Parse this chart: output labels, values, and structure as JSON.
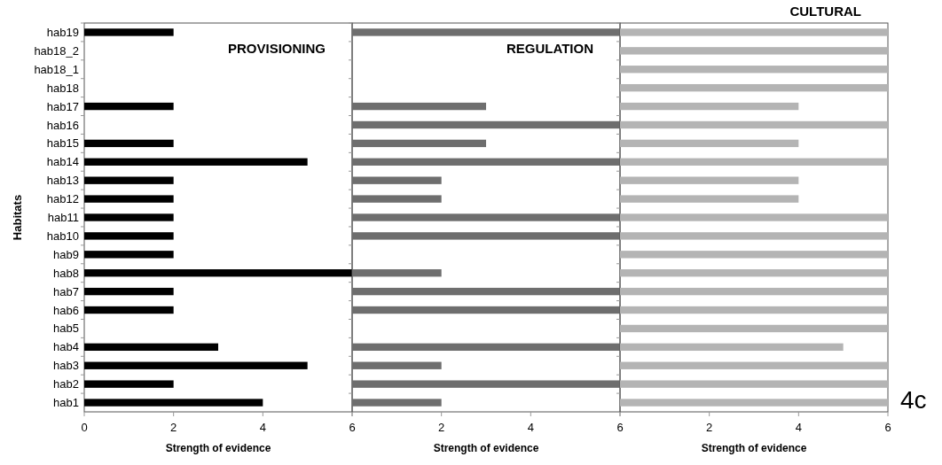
{
  "chart_data": [
    {
      "type": "bar",
      "orientation": "horizontal",
      "title": "PROVISIONING",
      "ylabel": "Habitats",
      "xlabel": "Strength of evidence",
      "categories": [
        "hab19",
        "hab18_2",
        "hab18_1",
        "hab18",
        "hab17",
        "hab16",
        "hab15",
        "hab14",
        "hab13",
        "hab12",
        "hab11",
        "hab10",
        "hab9",
        "hab8",
        "hab7",
        "hab6",
        "hab5",
        "hab4",
        "hab3",
        "hab2",
        "hab1"
      ],
      "values": [
        2,
        null,
        null,
        null,
        2,
        null,
        2,
        5,
        2,
        2,
        2,
        2,
        2,
        6,
        2,
        2,
        null,
        3,
        5,
        2,
        4
      ],
      "color": "#000000",
      "xlim": [
        0,
        6
      ],
      "xticks": [
        0,
        2,
        4,
        6
      ]
    },
    {
      "type": "bar",
      "orientation": "horizontal",
      "title": "REGULATION",
      "xlabel": "Strength of evidence",
      "categories": [
        "hab19",
        "hab18_2",
        "hab18_1",
        "hab18",
        "hab17",
        "hab16",
        "hab15",
        "hab14",
        "hab13",
        "hab12",
        "hab11",
        "hab10",
        "hab9",
        "hab8",
        "hab7",
        "hab6",
        "hab5",
        "hab4",
        "hab3",
        "hab2",
        "hab1"
      ],
      "values": [
        6,
        null,
        null,
        null,
        3,
        6,
        3,
        6,
        2,
        2,
        6,
        6,
        null,
        2,
        6,
        6,
        null,
        6,
        2,
        6,
        2
      ],
      "color": "#6e6e6e",
      "xlim": [
        0,
        6
      ],
      "xticks": [
        {
          "value": 0,
          "label": null
        },
        2,
        4,
        6
      ],
      "tick_labels": "x"
    },
    {
      "type": "bar",
      "orientation": "horizontal",
      "title": "CULTURAL",
      "xlabel": "Strength of evidence",
      "categories": [
        "hab19",
        "hab18_2",
        "hab18_1",
        "hab18",
        "hab17",
        "hab16",
        "hab15",
        "hab14",
        "hab13",
        "hab12",
        "hab11",
        "hab10",
        "hab9",
        "hab8",
        "hab7",
        "hab6",
        "hab5",
        "hab4",
        "hab3",
        "hab2",
        "hab1"
      ],
      "values": [
        6,
        6,
        6,
        6,
        4,
        6,
        4,
        6,
        4,
        4,
        6,
        6,
        6,
        6,
        6,
        6,
        6,
        5,
        6,
        6,
        6
      ],
      "color": "#b4b4b4",
      "xlim": [
        0,
        6
      ],
      "xticks": [
        {
          "value": 0,
          "label": null
        },
        2,
        4,
        6
      ],
      "tick_labels": "x",
      "annotations": [
        "4c"
      ]
    }
  ]
}
